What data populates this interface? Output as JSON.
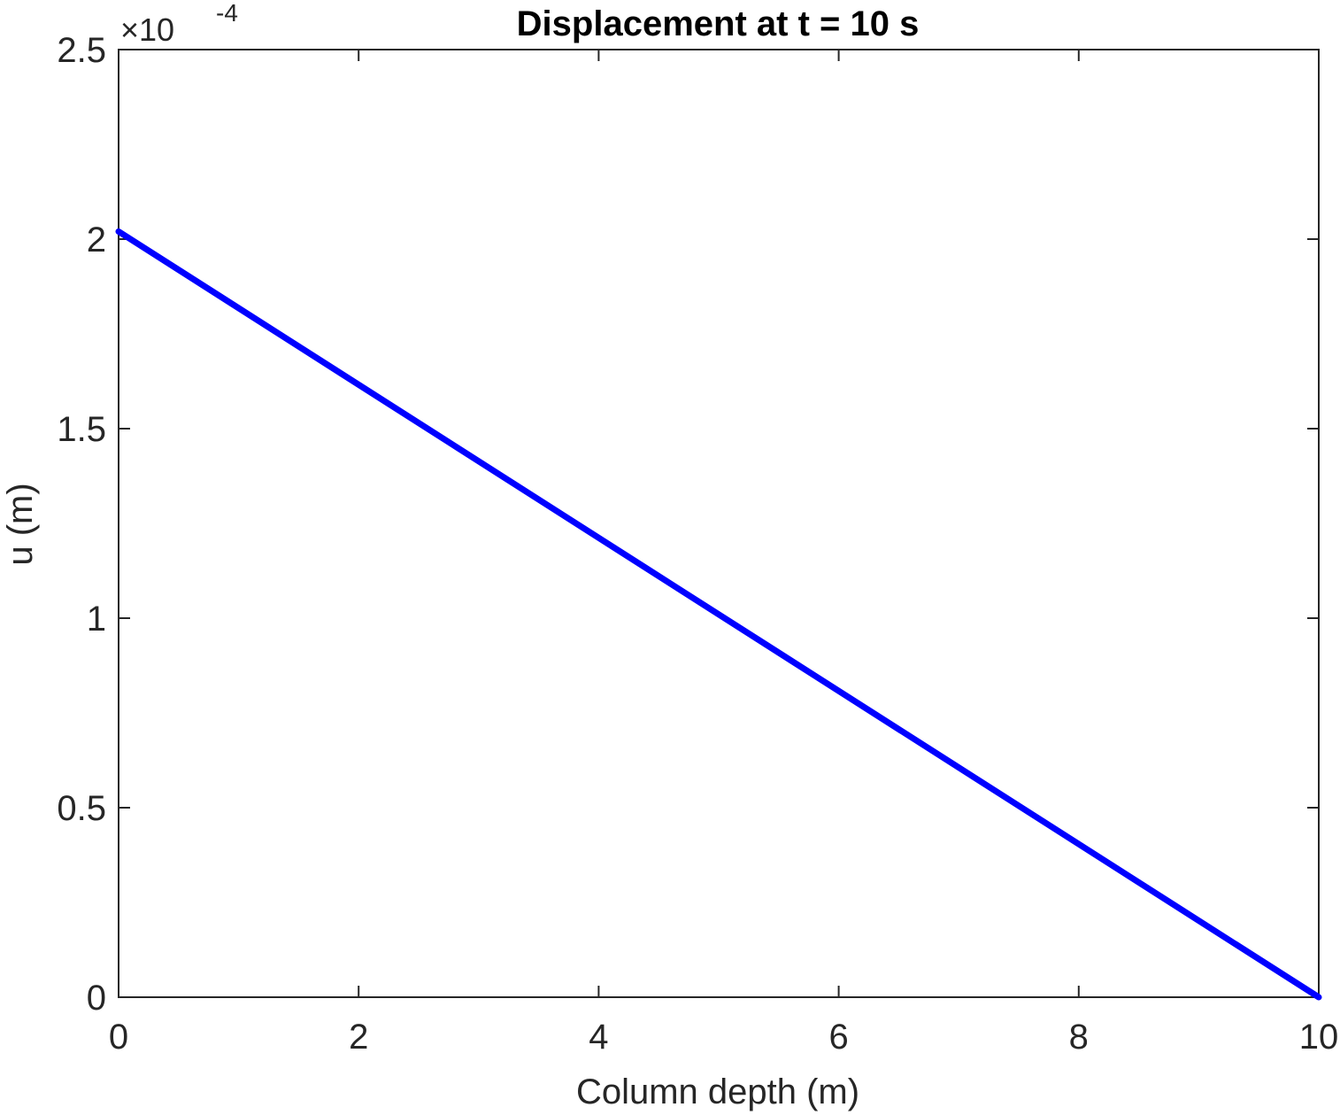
{
  "chart_data": {
    "type": "line",
    "title": "Displacement at t = 10 s",
    "xlabel": "Column depth (m)",
    "ylabel": "u (m)",
    "y_exponent_label": "×10",
    "y_exponent_power": "-4",
    "xlim": [
      0,
      10
    ],
    "ylim": [
      0,
      2.5
    ],
    "x_ticks": [
      0,
      2,
      4,
      6,
      8,
      10
    ],
    "x_tick_labels": [
      "0",
      "2",
      "4",
      "6",
      "8",
      "10"
    ],
    "y_ticks": [
      0,
      0.5,
      1,
      1.5,
      2,
      2.5
    ],
    "y_tick_labels": [
      "0",
      "0.5",
      "1",
      "1.5",
      "2",
      "2.5"
    ],
    "grid": false,
    "series": [
      {
        "color": "#0000ff",
        "x": [
          0,
          10
        ],
        "y": [
          2.02,
          0
        ]
      }
    ]
  }
}
